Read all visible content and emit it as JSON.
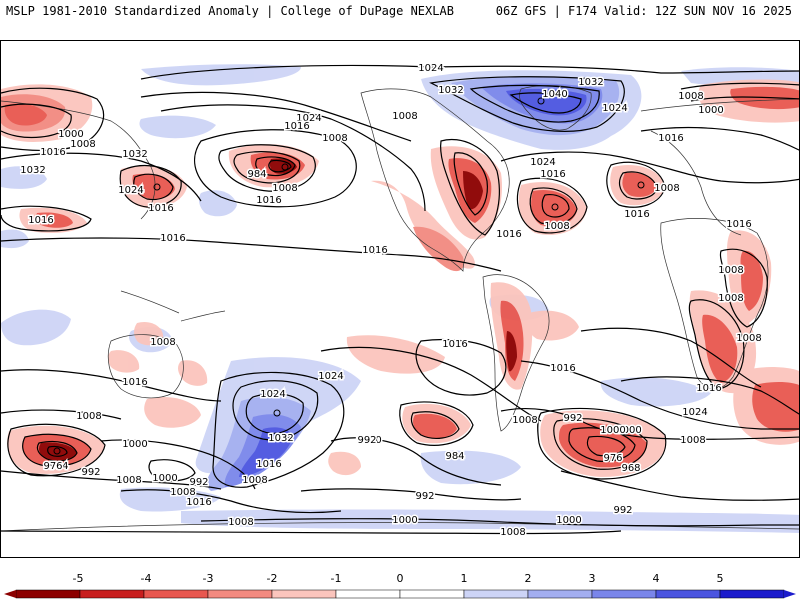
{
  "header": {
    "left_title": "MSLP 1981-2010 Standardized Anomaly | College of DuPage NEXLAB",
    "right_title": "06Z GFS | F174 Valid: 12Z SUN NOV 16 2025"
  },
  "colors": {
    "neg5": "#8c0000",
    "neg4": "#c81e1e",
    "neg3": "#e8574f",
    "neg2": "#f28a80",
    "neg1": "#fbc5bd",
    "zero": "#ffffff",
    "pos1": "#cdd4f6",
    "pos2": "#a3aef0",
    "pos3": "#7a86ea",
    "pos4": "#4b55e0",
    "pos5": "#1c1ccc"
  },
  "colorbar": {
    "ticks": [
      "-5",
      "-4",
      "-3",
      "-2",
      "-1",
      "0",
      "1",
      "2",
      "3",
      "4",
      "5"
    ]
  },
  "isobar_labels": [
    {
      "id": "l1",
      "text": "1024"
    },
    {
      "id": "l2",
      "text": "1032"
    },
    {
      "id": "l3",
      "text": "1032"
    },
    {
      "id": "l4",
      "text": "1040"
    },
    {
      "id": "l5",
      "text": "1024"
    },
    {
      "id": "l6",
      "text": "1008"
    },
    {
      "id": "l7",
      "text": "1000"
    },
    {
      "id": "l8",
      "text": "1000"
    },
    {
      "id": "l9",
      "text": "1008"
    },
    {
      "id": "l10",
      "text": "1016"
    },
    {
      "id": "l11",
      "text": "1032"
    },
    {
      "id": "l12",
      "text": "1032"
    },
    {
      "id": "l13",
      "text": "1024"
    },
    {
      "id": "l14",
      "text": "1016"
    },
    {
      "id": "l15",
      "text": "1016"
    },
    {
      "id": "l16",
      "text": "1024"
    },
    {
      "id": "l17",
      "text": "1016"
    },
    {
      "id": "l18",
      "text": "1008"
    },
    {
      "id": "l19",
      "text": "984"
    },
    {
      "id": "l20",
      "text": "1008"
    },
    {
      "id": "l21",
      "text": "1016"
    },
    {
      "id": "l22",
      "text": "1008"
    },
    {
      "id": "l23",
      "text": "1024"
    },
    {
      "id": "l24",
      "text": "1016"
    },
    {
      "id": "l25",
      "text": "1008"
    },
    {
      "id": "l26",
      "text": "1016"
    },
    {
      "id": "l27",
      "text": "1008"
    },
    {
      "id": "l28",
      "text": "1016"
    },
    {
      "id": "l29",
      "text": "1016"
    },
    {
      "id": "l30",
      "text": "1016"
    },
    {
      "id": "l31",
      "text": "1016"
    },
    {
      "id": "l32",
      "text": "1008"
    },
    {
      "id": "l33",
      "text": "1016"
    },
    {
      "id": "l34",
      "text": "1016"
    },
    {
      "id": "l35",
      "text": "1016"
    },
    {
      "id": "l36",
      "text": "1008"
    },
    {
      "id": "l37",
      "text": "1008"
    },
    {
      "id": "l38",
      "text": "1008"
    },
    {
      "id": "l39",
      "text": "1016"
    },
    {
      "id": "l40",
      "text": "1016"
    },
    {
      "id": "l41",
      "text": "1024"
    },
    {
      "id": "l42",
      "text": "1024"
    },
    {
      "id": "l43",
      "text": "1008"
    },
    {
      "id": "l44",
      "text": "1000"
    },
    {
      "id": "l45",
      "text": "1032"
    },
    {
      "id": "l46",
      "text": "1016"
    },
    {
      "id": "l47",
      "text": "1008"
    },
    {
      "id": "l48",
      "text": "1000"
    },
    {
      "id": "l49",
      "text": "992"
    },
    {
      "id": "l50",
      "text": "1008"
    },
    {
      "id": "l51",
      "text": "984"
    },
    {
      "id": "l52",
      "text": "992"
    },
    {
      "id": "l53",
      "text": "1000"
    },
    {
      "id": "l54",
      "text": "984"
    },
    {
      "id": "l55",
      "text": "976"
    },
    {
      "id": "l56",
      "text": "968"
    },
    {
      "id": "l57",
      "text": "992"
    },
    {
      "id": "l58",
      "text": "1000"
    },
    {
      "id": "l59",
      "text": "1008"
    },
    {
      "id": "l60",
      "text": "976"
    },
    {
      "id": "l61",
      "text": "992"
    },
    {
      "id": "l62",
      "text": "1008"
    },
    {
      "id": "l63",
      "text": "1000"
    },
    {
      "id": "l64",
      "text": "992"
    },
    {
      "id": "l65",
      "text": "1024"
    },
    {
      "id": "l66",
      "text": "1016"
    },
    {
      "id": "l67",
      "text": "1008"
    },
    {
      "id": "l68",
      "text": "1008"
    },
    {
      "id": "l69",
      "text": "1000"
    },
    {
      "id": "l70",
      "text": "992"
    },
    {
      "id": "l71",
      "text": "1000"
    },
    {
      "id": "l72",
      "text": "1008"
    }
  ]
}
